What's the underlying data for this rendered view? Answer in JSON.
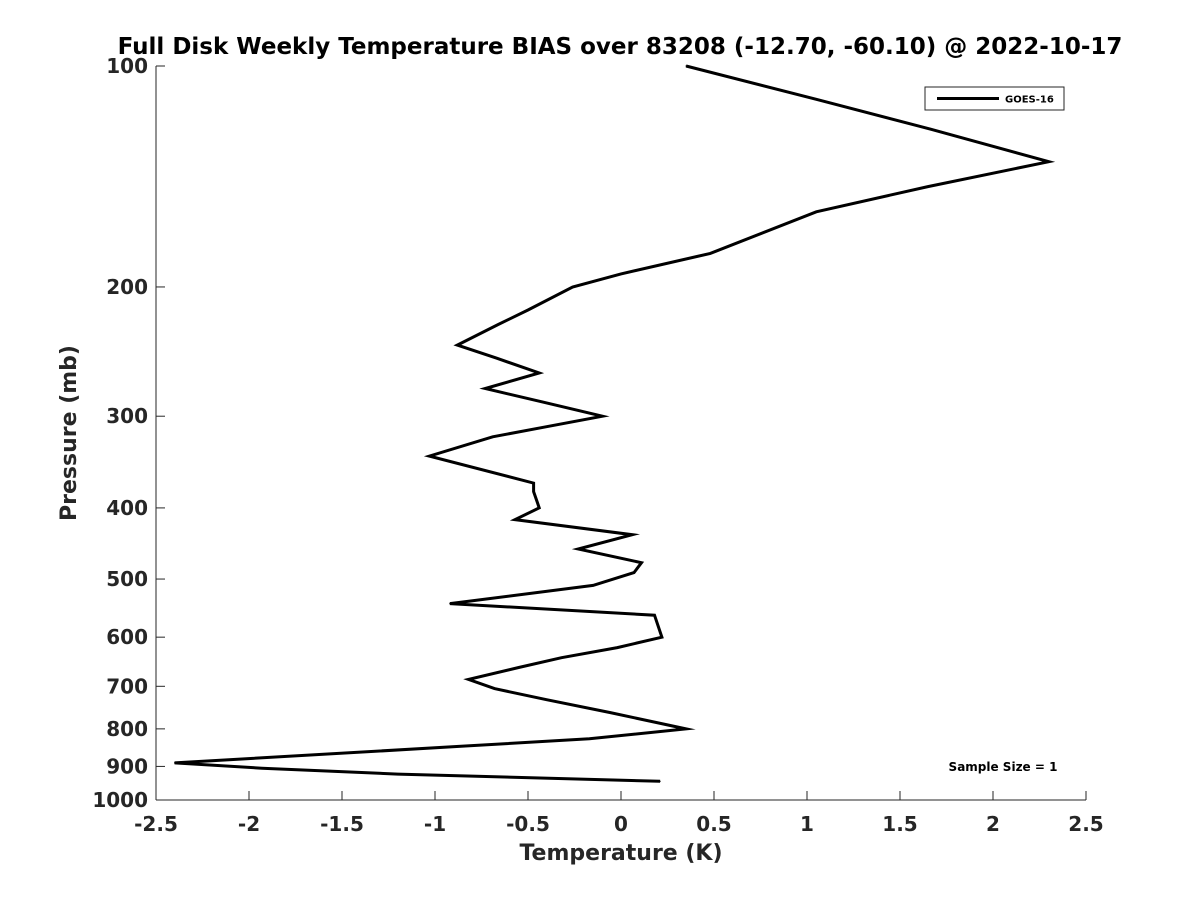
{
  "chart_data": {
    "type": "line",
    "title": "Full Disk Weekly Temperature BIAS over 83208 (-12.70, -60.10) @ 2022-10-17",
    "xlabel": "Temperature (K)",
    "ylabel": "Pressure (mb)",
    "xlim": [
      -2.5,
      2.5
    ],
    "ylim": [
      100,
      1000
    ],
    "y_scale": "log",
    "y_reversed": true,
    "xticks": [
      -2.5,
      -2,
      -1.5,
      -1,
      -0.5,
      0,
      0.5,
      1,
      1.5,
      2,
      2.5
    ],
    "xtick_labels": [
      "-2.5",
      "-2",
      "-1.5",
      "-1",
      "-0.5",
      "0",
      "0.5",
      "1",
      "1.5",
      "2",
      "2.5"
    ],
    "yticks": [
      100,
      200,
      300,
      400,
      500,
      600,
      700,
      800,
      900,
      1000
    ],
    "ytick_labels": [
      "100",
      "200",
      "300",
      "400",
      "500",
      "600",
      "700",
      "800",
      "900",
      "1000"
    ],
    "grid": false,
    "legend_position": "top-right",
    "series": [
      {
        "name": "GOES-16",
        "color": "#000000",
        "points": [
          {
            "x": 0.35,
            "y": 100
          },
          {
            "x": 1.05,
            "y": 111
          },
          {
            "x": 1.67,
            "y": 122
          },
          {
            "x": 2.3,
            "y": 135
          },
          {
            "x": 1.65,
            "y": 146
          },
          {
            "x": 1.05,
            "y": 158
          },
          {
            "x": 0.48,
            "y": 180
          },
          {
            "x": 0.0,
            "y": 192
          },
          {
            "x": -0.26,
            "y": 200
          },
          {
            "x": -0.5,
            "y": 215
          },
          {
            "x": -0.66,
            "y": 225
          },
          {
            "x": -0.88,
            "y": 240
          },
          {
            "x": -0.67,
            "y": 250
          },
          {
            "x": -0.44,
            "y": 262
          },
          {
            "x": -0.73,
            "y": 275
          },
          {
            "x": -0.42,
            "y": 287
          },
          {
            "x": -0.1,
            "y": 300
          },
          {
            "x": -0.4,
            "y": 310
          },
          {
            "x": -0.69,
            "y": 320
          },
          {
            "x": -1.03,
            "y": 340
          },
          {
            "x": -0.47,
            "y": 370
          },
          {
            "x": -0.47,
            "y": 380
          },
          {
            "x": -0.45,
            "y": 393
          },
          {
            "x": -0.44,
            "y": 400
          },
          {
            "x": -0.57,
            "y": 415
          },
          {
            "x": 0.06,
            "y": 435
          },
          {
            "x": -0.23,
            "y": 455
          },
          {
            "x": 0.11,
            "y": 475
          },
          {
            "x": 0.07,
            "y": 490
          },
          {
            "x": -0.15,
            "y": 510
          },
          {
            "x": -0.92,
            "y": 540
          },
          {
            "x": 0.18,
            "y": 560
          },
          {
            "x": 0.22,
            "y": 600
          },
          {
            "x": -0.02,
            "y": 620
          },
          {
            "x": -0.32,
            "y": 640
          },
          {
            "x": -0.55,
            "y": 660
          },
          {
            "x": -0.82,
            "y": 685
          },
          {
            "x": -0.68,
            "y": 705
          },
          {
            "x": -0.4,
            "y": 730
          },
          {
            "x": -0.06,
            "y": 760
          },
          {
            "x": 0.35,
            "y": 800
          },
          {
            "x": -0.17,
            "y": 825
          },
          {
            "x": -0.86,
            "y": 845
          },
          {
            "x": -2.4,
            "y": 890
          },
          {
            "x": -1.93,
            "y": 905
          },
          {
            "x": -1.2,
            "y": 922
          },
          {
            "x": 0.21,
            "y": 943
          }
        ]
      }
    ],
    "annotations": [
      {
        "text": "Sample Size = 1",
        "position": "bottom-right"
      }
    ]
  }
}
